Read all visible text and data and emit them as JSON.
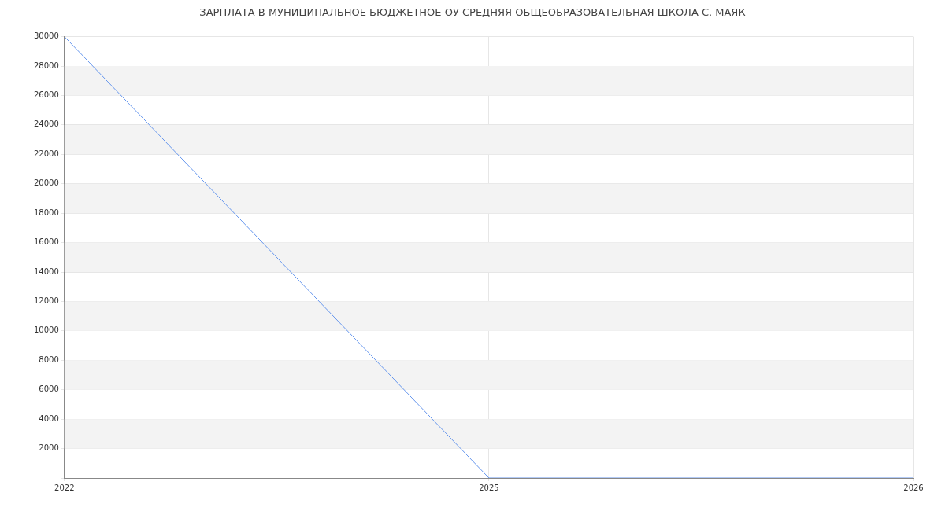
{
  "chart_data": {
    "type": "line",
    "title": "ЗАРПЛАТА В МУНИЦИПАЛЬНОЕ БЮДЖЕТНОЕ ОУ СРЕДНЯЯ ОБЩЕОБРАЗОВАТЕЛЬНАЯ ШКОЛА С. МАЯК",
    "categories": [
      "2022",
      "2025",
      "2026"
    ],
    "series": [
      {
        "color": "#6495ed",
        "values": [
          30000,
          0,
          0
        ]
      }
    ],
    "ylim": [
      0,
      30000
    ],
    "yticks": [
      {
        "value": 0,
        "label": null
      },
      2000,
      4000,
      6000,
      8000,
      10000,
      12000,
      14000,
      16000,
      18000,
      20000,
      22000,
      24000,
      26000,
      28000,
      30000
    ],
    "grid": true,
    "legend": false,
    "marker": "none",
    "line_style": "solid"
  }
}
